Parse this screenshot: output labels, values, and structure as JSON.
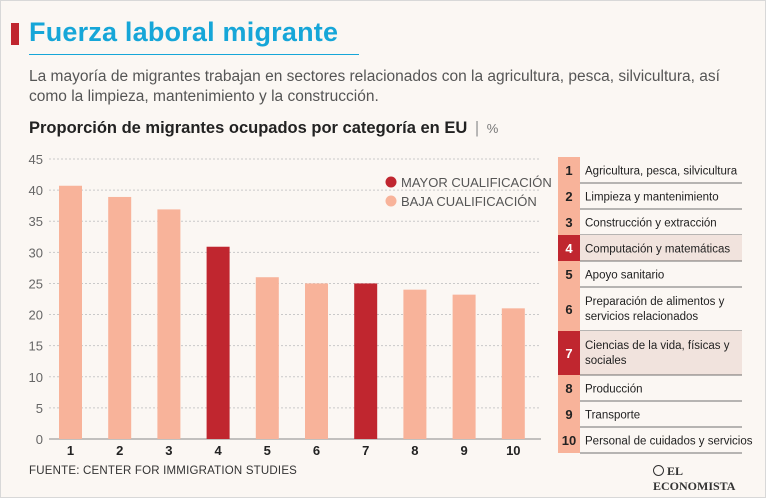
{
  "header": {
    "title": "Fuerza laboral migrante",
    "subtitle": "La mayoría de migrantes trabajan en sectores relacionados con la agricultura, pesca, silvicultura, así como la limpieza, mantenimiento y la construcción."
  },
  "chart_title": "Proporción de migrantes ocupados por categoría en EU",
  "chart_title_sep": "|",
  "chart_unit": "%",
  "colors": {
    "high": "#c0262f",
    "low": "#f8b39a",
    "accent": "#16a6d8"
  },
  "chart_data": {
    "type": "bar",
    "title": "Proporción de migrantes ocupados por categoría en EU",
    "ylabel": "%",
    "ylim": [
      0,
      45
    ],
    "yticks": [
      0,
      5,
      10,
      15,
      20,
      25,
      30,
      35,
      40,
      45
    ],
    "grid": true,
    "legend_position": "top-right",
    "categories": [
      "1",
      "2",
      "3",
      "4",
      "5",
      "6",
      "7",
      "8",
      "9",
      "10"
    ],
    "values": [
      40.7,
      38.9,
      36.9,
      30.9,
      26.0,
      25.0,
      25.0,
      24.0,
      23.2,
      21.0
    ],
    "qualification": [
      "low",
      "low",
      "low",
      "high",
      "low",
      "low",
      "high",
      "low",
      "low",
      "low"
    ],
    "series": [
      {
        "name": "MAYOR CUALIFICACIÓN",
        "key": "high"
      },
      {
        "name": "BAJA CUALIFICACIÓN",
        "key": "low"
      }
    ],
    "category_labels": [
      "Agricultura, pesca, silvicultura",
      "Limpieza y mantenimiento",
      "Construcción y extracción",
      "Computación y matemáticas",
      "Apoyo sanitario",
      "Preparación de alimentos y servicios relacionados",
      "Ciencias de la vida, físicas y sociales",
      "Producción",
      "Transporte",
      "Personal de cuidados y servicios"
    ]
  },
  "footer": {
    "source": "FUENTE: CENTER FOR IMMIGRATION STUDIES",
    "logo": "EL ECONOMISTA"
  }
}
